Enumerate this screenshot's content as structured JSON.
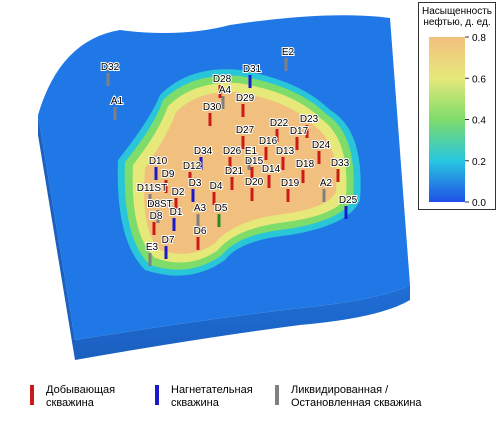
{
  "colorbar": {
    "title": "Насыщенность нефтью, д. ед.",
    "lim": [
      0,
      0.8
    ],
    "ticks": [
      {
        "value": 0,
        "label": "0.0"
      },
      0.2,
      0.4,
      0.6,
      0.8
    ]
  },
  "wells": [
    {
      "label": "D32",
      "color": "#808080"
    },
    {
      "label": "E2",
      "color": "#808080"
    },
    {
      "label": "A1",
      "color": "#808080"
    },
    {
      "label": "D31",
      "color": "#1a1acc"
    },
    {
      "label": "D28",
      "color": "#cc1a1a"
    },
    {
      "label": "A4",
      "color": "#808080"
    },
    {
      "label": "D29",
      "color": "#cc1a1a"
    },
    {
      "label": "D30",
      "color": "#cc1a1a"
    },
    {
      "label": "D27",
      "color": "#cc1a1a"
    },
    {
      "label": "D22",
      "color": "#cc1a1a"
    },
    {
      "label": "D23",
      "color": "#cc1a1a"
    },
    {
      "label": "D17",
      "color": "#cc1a1a"
    },
    {
      "label": "D24",
      "color": "#cc1a1a"
    },
    {
      "label": "D16",
      "color": "#cc1a1a"
    },
    {
      "label": "E1",
      "color": "#808080"
    },
    {
      "label": "D26",
      "color": "#cc1a1a"
    },
    {
      "label": "D34",
      "color": "#1a1acc"
    },
    {
      "label": "D13",
      "color": "#cc1a1a"
    },
    {
      "label": "D15",
      "color": "#cc1a1a"
    },
    {
      "label": "D33",
      "color": "#cc1a1a"
    },
    {
      "label": "D10",
      "color": "#1a1acc"
    },
    {
      "label": "D12",
      "color": "#cc1a1a"
    },
    {
      "label": "D9",
      "color": "#cc1a1a"
    },
    {
      "label": "D14",
      "color": "#cc1a1a"
    },
    {
      "label": "D18",
      "color": "#cc1a1a"
    },
    {
      "label": "D21",
      "color": "#cc1a1a"
    },
    {
      "label": "D3",
      "color": "#1a1acc"
    },
    {
      "label": "D4",
      "color": "#cc1a1a"
    },
    {
      "label": "D20",
      "color": "#cc1a1a"
    },
    {
      "label": "D19",
      "color": "#cc1a1a"
    },
    {
      "label": "A2",
      "color": "#808080"
    },
    {
      "label": "D11ST",
      "color": "#808080"
    },
    {
      "label": "D2",
      "color": "#cc1a1a"
    },
    {
      "label": "D8ST",
      "color": "#808080"
    },
    {
      "label": "D25",
      "color": "#1a1acc"
    },
    {
      "label": "D5",
      "color": "#2a8a2a"
    },
    {
      "label": "A3",
      "color": "#808080"
    },
    {
      "label": "D1",
      "color": "#1a1acc"
    },
    {
      "label": "D8",
      "color": "#cc1a1a"
    },
    {
      "label": "D6",
      "color": "#cc1a1a"
    },
    {
      "label": "D7",
      "color": "#1a1acc"
    },
    {
      "label": "E3",
      "color": "#808080"
    }
  ],
  "legend": [
    {
      "label": "Добывающая скважина",
      "color": "#cc1a1a"
    },
    {
      "label": "Нагнетательная скважина",
      "color": "#1a1acc"
    },
    {
      "label": "Ликвидированная / Остановленная скважина",
      "color": "#808080"
    }
  ]
}
